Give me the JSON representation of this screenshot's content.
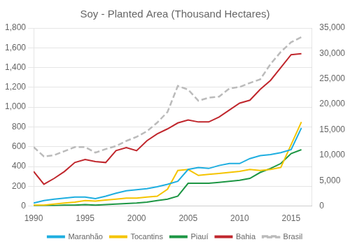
{
  "chart_data": {
    "type": "line",
    "title": "Soy - Planted Area (Thousand Hectares)",
    "x": [
      1990,
      1991,
      1992,
      1993,
      1994,
      1995,
      1996,
      1997,
      1998,
      1999,
      2000,
      2001,
      2002,
      2003,
      2004,
      2005,
      2006,
      2007,
      2008,
      2009,
      2010,
      2011,
      2012,
      2013,
      2014,
      2015,
      2016
    ],
    "series": [
      {
        "name": "Maranhão",
        "color": "#1EAEE0",
        "values": [
          30,
          55,
          70,
          80,
          90,
          90,
          75,
          100,
          130,
          155,
          165,
          175,
          195,
          220,
          250,
          370,
          390,
          380,
          410,
          430,
          430,
          480,
          510,
          520,
          540,
          570,
          790
        ]
      },
      {
        "name": "Tocantins",
        "color": "#F5C400",
        "values": [
          10,
          10,
          20,
          30,
          40,
          55,
          50,
          60,
          70,
          80,
          80,
          90,
          100,
          170,
          360,
          370,
          310,
          320,
          330,
          340,
          350,
          370,
          360,
          370,
          390,
          620,
          850
        ]
      },
      {
        "name": "Piauí",
        "color": "#1D9644",
        "values": [
          5,
          5,
          5,
          10,
          10,
          15,
          10,
          15,
          20,
          25,
          30,
          40,
          55,
          70,
          100,
          230,
          230,
          230,
          240,
          250,
          260,
          280,
          340,
          380,
          430,
          530,
          570
        ]
      },
      {
        "name": "Bahia",
        "color": "#C0272D",
        "values": [
          350,
          220,
          280,
          350,
          440,
          470,
          450,
          440,
          560,
          590,
          560,
          660,
          730,
          780,
          840,
          870,
          850,
          850,
          900,
          970,
          1040,
          1070,
          1180,
          1270,
          1400,
          1530,
          1540
        ]
      },
      {
        "name": "Brasil",
        "color": "#BBBBBB",
        "axis": "y2",
        "line_style": "dashed",
        "values": [
          11600,
          9750,
          10000,
          10800,
          11600,
          11600,
          10500,
          11200,
          11800,
          12800,
          13600,
          14700,
          16400,
          18500,
          23600,
          22900,
          20700,
          21300,
          21500,
          23100,
          23400,
          24200,
          24900,
          27900,
          30300,
          32200,
          33200
        ]
      }
    ],
    "xlim": [
      1990,
      2017
    ],
    "xticks": [
      1990,
      1995,
      2000,
      2005,
      2010,
      2015
    ],
    "ylim": [
      0,
      1800
    ],
    "yticks": [
      0,
      200,
      400,
      600,
      800,
      {
        "value": 1000,
        "label": "1,000"
      },
      {
        "value": 1200,
        "label": "1,200"
      },
      {
        "value": 1400,
        "label": "1,400"
      },
      {
        "value": 1600,
        "label": "1,600"
      },
      {
        "value": 1800,
        "label": "1,800"
      }
    ],
    "y2lim": [
      0,
      35000
    ],
    "y2ticks": [
      0,
      {
        "value": 5000,
        "label": "5,000"
      },
      {
        "value": 10000,
        "label": "10,000"
      },
      {
        "value": 15000,
        "label": "15,000"
      },
      {
        "value": 20000,
        "label": "20,000"
      },
      {
        "value": 25000,
        "label": "25,000"
      },
      {
        "value": 30000,
        "label": "30,000"
      },
      {
        "value": 35000,
        "label": "35,000"
      }
    ],
    "grid": true,
    "legend": "bottom"
  }
}
